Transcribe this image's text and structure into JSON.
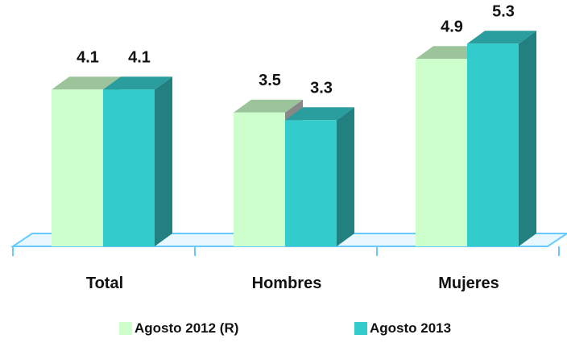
{
  "chart_data": {
    "type": "bar",
    "categories": [
      "Total",
      "Hombres",
      "Mujeres"
    ],
    "series": [
      {
        "name": "Agosto 2012 (R)",
        "values": [
          4.1,
          3.5,
          4.9
        ],
        "color": "#ccffcc",
        "top_color": "#9bc49b"
      },
      {
        "name": "Agosto 2013",
        "values": [
          4.1,
          3.3,
          5.3
        ],
        "color": "#33cccc",
        "top_color": "#2a9e9e",
        "side_color": "#228080"
      }
    ],
    "value_labels": [
      "4.1",
      "4.1",
      "3.5",
      "3.3",
      "4.9",
      "5.3"
    ],
    "title": "",
    "xlabel": "",
    "ylabel": "",
    "ylim": [
      0,
      6
    ],
    "grid": false,
    "legend_position": "bottom",
    "floor_color": "#66ccff"
  }
}
